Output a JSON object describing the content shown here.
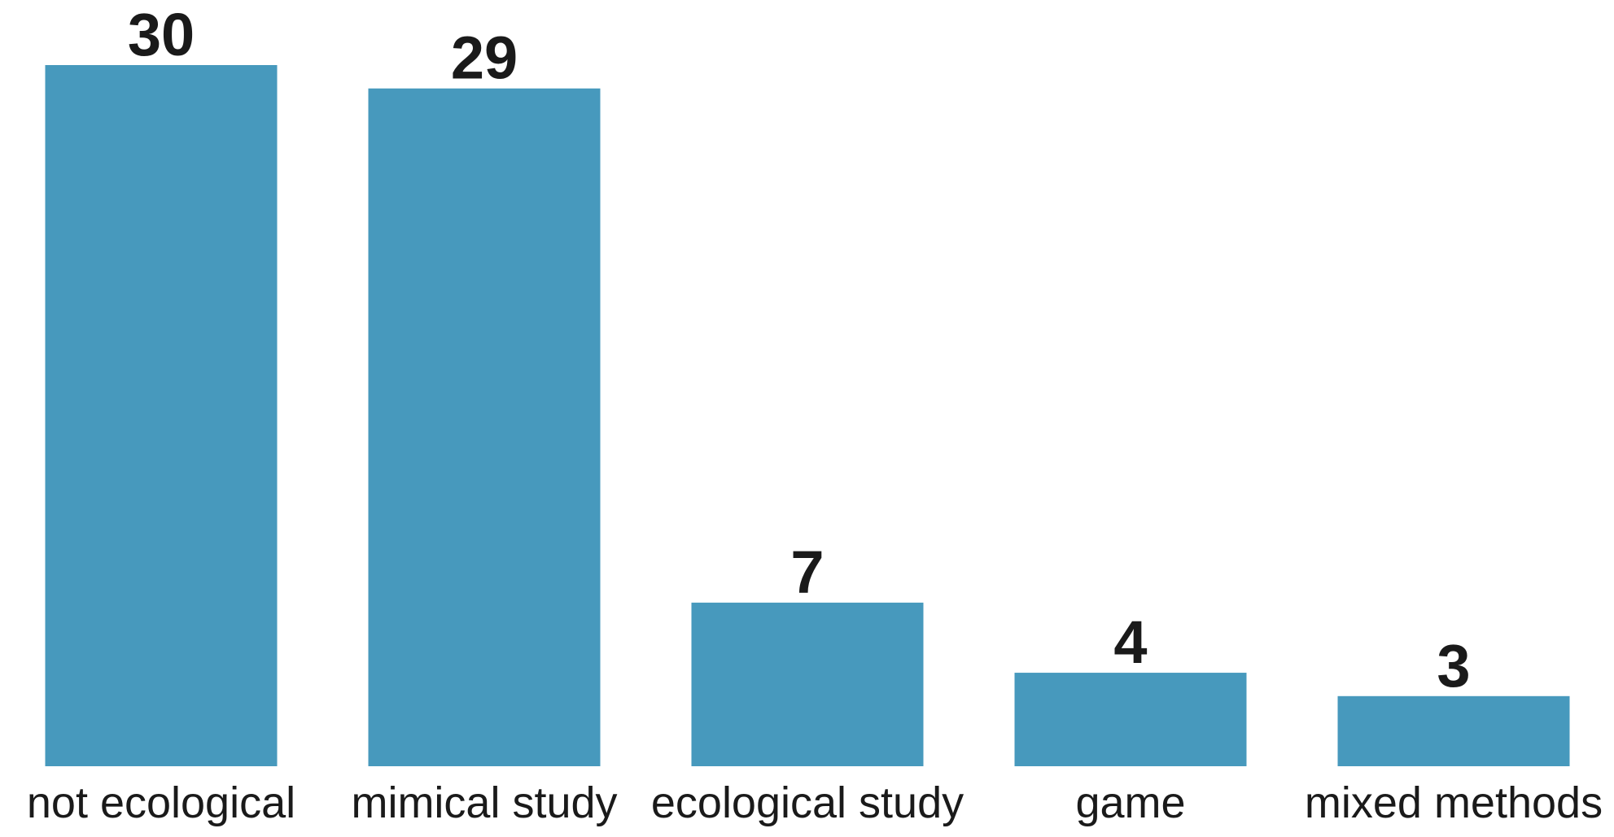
{
  "chart_data": {
    "type": "bar",
    "title": "",
    "xlabel": "",
    "ylabel": "",
    "categories": [
      "not ecological",
      "mimical study",
      "ecological study",
      "game",
      "mixed methods"
    ],
    "values": [
      30,
      29,
      7,
      4,
      3
    ],
    "ylim": [
      0,
      30
    ],
    "grid": false,
    "bar_color": "#4799bd",
    "data_labels": true
  }
}
